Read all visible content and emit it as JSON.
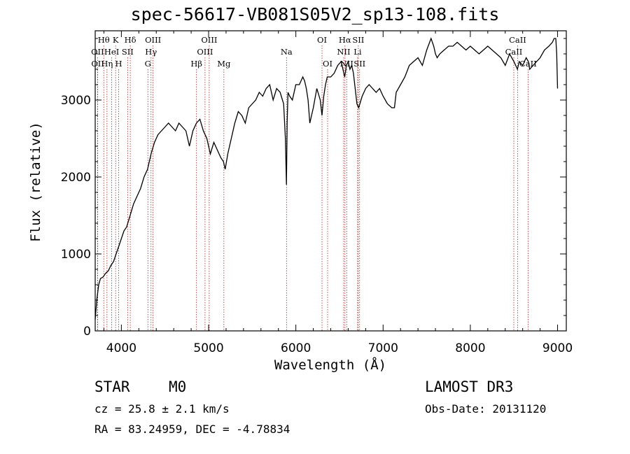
{
  "title": "spec-56617-VB081S05V2_sp13-108.fits",
  "info": {
    "object_class": "STAR",
    "subclass": "M0",
    "survey": "LAMOST DR3",
    "cz": "cz = 25.8 ± 2.1 km/s",
    "obs_date": "Obs-Date: 20131120",
    "coords": "RA =  83.24959, DEC =  -4.78834"
  },
  "chart_data": {
    "type": "line",
    "xlabel": "Wavelength (Å)",
    "ylabel": "Flux (relative)",
    "xlim": [
      3700,
      9100
    ],
    "ylim": [
      0,
      3900
    ],
    "x_ticks": [
      4000,
      5000,
      6000,
      7000,
      8000,
      9000
    ],
    "y_ticks": [
      0,
      1000,
      2000,
      3000
    ],
    "grid": false,
    "line_color": "#000000",
    "marker_color": "#b22222",
    "series": [
      {
        "x": [
          3700,
          3720,
          3740,
          3760,
          3790,
          3820,
          3850,
          3880,
          3910,
          3940,
          3970,
          4000,
          4030,
          4060,
          4100,
          4140,
          4180,
          4220,
          4260,
          4300,
          4340,
          4380,
          4420,
          4460,
          4500,
          4540,
          4580,
          4620,
          4660,
          4700,
          4740,
          4780,
          4820,
          4860,
          4900,
          4940,
          4980,
          5020,
          5060,
          5100,
          5140,
          5170,
          5190,
          5220,
          5260,
          5300,
          5340,
          5380,
          5420,
          5460,
          5500,
          5540,
          5580,
          5620,
          5660,
          5700,
          5740,
          5780,
          5820,
          5860,
          5880,
          5892,
          5900,
          5910,
          5930,
          5960,
          6000,
          6040,
          6080,
          6100,
          6120,
          6140,
          6160,
          6200,
          6240,
          6280,
          6300,
          6320,
          6340,
          6360,
          6400,
          6440,
          6480,
          6520,
          6540,
          6560,
          6580,
          6600,
          6620,
          6640,
          6660,
          6680,
          6700,
          6720,
          6760,
          6800,
          6840,
          6880,
          6920,
          6960,
          7000,
          7050,
          7100,
          7130,
          7150,
          7200,
          7250,
          7300,
          7350,
          7400,
          7450,
          7500,
          7550,
          7580,
          7600,
          7620,
          7650,
          7700,
          7750,
          7800,
          7850,
          7900,
          7950,
          8000,
          8050,
          8100,
          8150,
          8200,
          8250,
          8300,
          8350,
          8400,
          8450,
          8500,
          8520,
          8540,
          8560,
          8600,
          8640,
          8665,
          8680,
          8720,
          8760,
          8800,
          8850,
          8900,
          8940,
          8960,
          8980,
          8990,
          9000
        ],
        "y": [
          150,
          420,
          600,
          680,
          700,
          750,
          780,
          850,
          900,
          1000,
          1100,
          1200,
          1300,
          1350,
          1500,
          1650,
          1750,
          1850,
          2000,
          2100,
          2300,
          2450,
          2550,
          2600,
          2650,
          2700,
          2650,
          2600,
          2700,
          2650,
          2600,
          2400,
          2600,
          2700,
          2750,
          2600,
          2500,
          2300,
          2450,
          2350,
          2250,
          2200,
          2100,
          2300,
          2500,
          2700,
          2850,
          2800,
          2700,
          2900,
          2950,
          3000,
          3100,
          3050,
          3150,
          3200,
          3000,
          3150,
          3100,
          2950,
          2500,
          1900,
          2700,
          3100,
          3050,
          3000,
          3200,
          3200,
          3300,
          3250,
          3150,
          3000,
          2700,
          2900,
          3150,
          3000,
          2800,
          3050,
          3200,
          3300,
          3300,
          3350,
          3450,
          3500,
          3400,
          3300,
          3450,
          3500,
          3400,
          3450,
          3350,
          3150,
          2950,
          2900,
          3050,
          3150,
          3200,
          3150,
          3100,
          3150,
          3050,
          2950,
          2900,
          2900,
          3100,
          3200,
          3300,
          3450,
          3500,
          3550,
          3450,
          3650,
          3800,
          3700,
          3600,
          3550,
          3600,
          3650,
          3700,
          3700,
          3750,
          3700,
          3650,
          3700,
          3650,
          3600,
          3650,
          3700,
          3650,
          3600,
          3550,
          3450,
          3600,
          3500,
          3450,
          3400,
          3500,
          3450,
          3550,
          3500,
          3400,
          3450,
          3500,
          3550,
          3650,
          3700,
          3750,
          3800,
          3800,
          3600,
          3150
        ]
      }
    ],
    "spectral_lines": [
      {
        "label": "Hθ",
        "x": 3798,
        "row": 1
      },
      {
        "label": "OII",
        "x": 3727,
        "row": 2
      },
      {
        "label": "OII",
        "x": 3729,
        "row": 3
      },
      {
        "label": "Hη",
        "x": 3835,
        "row": 3
      },
      {
        "label": "K",
        "x": 3934,
        "row": 1
      },
      {
        "label": "HeI",
        "x": 3889,
        "row": 2
      },
      {
        "label": "H",
        "x": 3969,
        "row": 3
      },
      {
        "label": "SII",
        "x": 4072,
        "row": 2
      },
      {
        "label": "Hδ",
        "x": 4102,
        "row": 1
      },
      {
        "label": "OIII",
        "x": 4363,
        "row": 1
      },
      {
        "label": "Hγ",
        "x": 4340,
        "row": 2
      },
      {
        "label": "G",
        "x": 4304,
        "row": 3
      },
      {
        "label": "Hβ",
        "x": 4861,
        "row": 3
      },
      {
        "label": "OIII",
        "x": 5007,
        "row": 1
      },
      {
        "label": "OIII",
        "x": 4959,
        "row": 2
      },
      {
        "label": "Mg",
        "x": 5175,
        "row": 3
      },
      {
        "label": "Na",
        "x": 5893,
        "row": 2
      },
      {
        "label": "OI",
        "x": 6300,
        "row": 1
      },
      {
        "label": "OI",
        "x": 6364,
        "row": 3
      },
      {
        "label": "Hα",
        "x": 6563,
        "row": 1
      },
      {
        "label": "NII",
        "x": 6548,
        "row": 2
      },
      {
        "label": "NII",
        "x": 6583,
        "row": 3
      },
      {
        "label": "SII",
        "x": 6716,
        "row": 1
      },
      {
        "label": "Li",
        "x": 6708,
        "row": 2
      },
      {
        "label": "SII",
        "x": 6731,
        "row": 3
      },
      {
        "label": "CaII",
        "x": 8542,
        "row": 1
      },
      {
        "label": "CaII",
        "x": 8498,
        "row": 2
      },
      {
        "label": "CaII",
        "x": 8662,
        "row": 3
      }
    ]
  }
}
